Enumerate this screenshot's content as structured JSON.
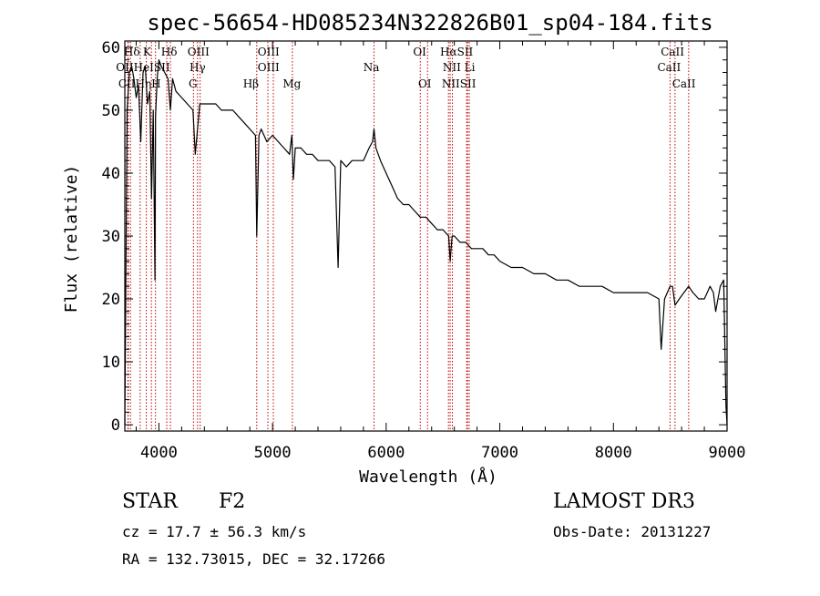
{
  "chart_data": {
    "type": "line",
    "title": "spec-56654-HD085234N322826B01_sp04-184.fits",
    "xlabel": "Wavelength (Å)",
    "ylabel": "Flux (relative)",
    "xlim": [
      3700,
      9000
    ],
    "ylim": [
      -1,
      61
    ],
    "xticks": [
      4000,
      5000,
      6000,
      7000,
      8000,
      9000
    ],
    "yticks": [
      0,
      10,
      20,
      30,
      40,
      50,
      60
    ],
    "xtick_labels": [
      "4000",
      "5000",
      "6000",
      "7000",
      "8000",
      "9000"
    ],
    "ytick_labels": [
      "0",
      "10",
      "20",
      "30",
      "40",
      "50",
      "60"
    ],
    "grid": false,
    "series": [
      {
        "name": "spectrum",
        "x": [
          3700,
          3720,
          3740,
          3760,
          3780,
          3800,
          3820,
          3840,
          3860,
          3880,
          3900,
          3920,
          3935,
          3950,
          3965,
          3970,
          3985,
          4000,
          4020,
          4050,
          4080,
          4101,
          4120,
          4150,
          4200,
          4250,
          4300,
          4320,
          4340,
          4360,
          4400,
          4450,
          4500,
          4550,
          4600,
          4650,
          4700,
          4750,
          4800,
          4850,
          4861,
          4880,
          4900,
          4950,
          5000,
          5050,
          5100,
          5150,
          5170,
          5183,
          5200,
          5250,
          5300,
          5350,
          5400,
          5450,
          5500,
          5550,
          5577,
          5600,
          5650,
          5700,
          5750,
          5800,
          5850,
          5880,
          5893,
          5910,
          5950,
          6000,
          6050,
          6100,
          6150,
          6200,
          6250,
          6300,
          6350,
          6400,
          6450,
          6500,
          6550,
          6563,
          6580,
          6600,
          6650,
          6700,
          6750,
          6800,
          6850,
          6900,
          6950,
          7000,
          7100,
          7200,
          7300,
          7400,
          7500,
          7600,
          7700,
          7800,
          7900,
          8000,
          8100,
          8200,
          8300,
          8400,
          8420,
          8450,
          8498,
          8520,
          8542,
          8580,
          8620,
          8662,
          8700,
          8750,
          8800,
          8850,
          8880,
          8900,
          8940,
          8970,
          8990,
          9000
        ],
        "y": [
          0,
          50,
          56,
          57,
          55,
          52,
          54,
          45,
          56,
          57,
          51,
          53,
          36,
          50,
          23,
          49,
          55,
          58,
          57,
          56,
          55,
          50,
          55,
          53,
          52,
          51,
          50,
          43,
          47,
          51,
          51,
          51,
          51,
          50,
          50,
          50,
          49,
          48,
          47,
          46,
          30,
          46,
          47,
          45,
          46,
          45,
          44,
          43,
          46,
          39,
          44,
          44,
          43,
          43,
          42,
          42,
          42,
          41,
          25,
          42,
          41,
          42,
          42,
          42,
          44,
          45,
          47,
          44,
          42,
          40,
          38,
          36,
          35,
          35,
          34,
          33,
          33,
          32,
          31,
          31,
          30,
          26,
          30,
          30,
          29,
          29,
          28,
          28,
          28,
          27,
          27,
          26,
          25,
          25,
          24,
          24,
          23,
          23,
          22,
          22,
          22,
          21,
          21,
          21,
          21,
          20,
          12,
          20,
          22,
          22,
          19,
          20,
          21,
          22,
          21,
          20,
          20,
          22,
          21,
          18,
          22,
          23,
          3,
          0
        ]
      }
    ],
    "lines": [
      {
        "label": "Hδ",
        "x": 3750
      },
      {
        "label": "K",
        "x": 3934
      },
      {
        "label": "Hδ",
        "x": 4101
      },
      {
        "label": "OII",
        "x": 3727
      },
      {
        "label": "HeI",
        "x": 3889
      },
      {
        "label": "SII",
        "x": 4069
      },
      {
        "label": "CII",
        "x": 3730
      },
      {
        "label": "Hη",
        "x": 3835
      },
      {
        "label": "H",
        "x": 3970
      },
      {
        "label": "OIII",
        "x": 4363
      },
      {
        "label": "Hγ",
        "x": 4340
      },
      {
        "label": "G",
        "x": 4304
      },
      {
        "label": "OIII",
        "x": 4959
      },
      {
        "label": "OIII",
        "x": 5007
      },
      {
        "label": "Hβ",
        "x": 4861
      },
      {
        "label": "Mg",
        "x": 5175
      },
      {
        "label": "Na",
        "x": 5893
      },
      {
        "label": "OI",
        "x": 6300
      },
      {
        "label": "OI",
        "x": 6364
      },
      {
        "label": "Hα",
        "x": 6563
      },
      {
        "label": "SII",
        "x": 6716
      },
      {
        "label": "NII",
        "x": 6548
      },
      {
        "label": "Li",
        "x": 6708
      },
      {
        "label": "NII",
        "x": 6583
      },
      {
        "label": "SII",
        "x": 6731
      },
      {
        "label": "CaII",
        "x": 8542
      },
      {
        "label": "CaII",
        "x": 8498
      },
      {
        "label": "CaII",
        "x": 8662
      }
    ],
    "lineLabels": [
      {
        "text": "Hδ",
        "x": 3762,
        "tier": 0
      },
      {
        "text": "K",
        "x": 3895,
        "tier": 0
      },
      {
        "text": "Hδ",
        "x": 4090,
        "tier": 0
      },
      {
        "text": "OIII",
        "x": 4348,
        "tier": 0
      },
      {
        "text": "OIII",
        "x": 4965,
        "tier": 0
      },
      {
        "text": "OI",
        "x": 6295,
        "tier": 0
      },
      {
        "text": "HαSII",
        "x": 6620,
        "tier": 0
      },
      {
        "text": "CaII",
        "x": 8520,
        "tier": 0
      },
      {
        "text": "OIIHeISII",
        "x": 3860,
        "tier": 1
      },
      {
        "text": "Hγ",
        "x": 4340,
        "tier": 1
      },
      {
        "text": "OIII",
        "x": 4965,
        "tier": 1
      },
      {
        "text": "Na",
        "x": 5870,
        "tier": 1
      },
      {
        "text": "NII Li",
        "x": 6640,
        "tier": 1
      },
      {
        "text": "CaII",
        "x": 8490,
        "tier": 1
      },
      {
        "text": "CIIHηH",
        "x": 3830,
        "tier": 2
      },
      {
        "text": "G",
        "x": 4300,
        "tier": 2
      },
      {
        "text": "Hβ",
        "x": 4810,
        "tier": 2
      },
      {
        "text": "Mg",
        "x": 5170,
        "tier": 2
      },
      {
        "text": "OI",
        "x": 6340,
        "tier": 2
      },
      {
        "text": "NIISII",
        "x": 6640,
        "tier": 2
      },
      {
        "text": "CaII",
        "x": 8620,
        "tier": 2
      }
    ]
  },
  "footer": {
    "object_type": "STAR",
    "subclass": "F2",
    "survey": "LAMOST DR3",
    "redshift": "cz = 17.7 ± 56.3 km/s",
    "obs_date": "Obs-Date: 20131227",
    "coords": "RA = 132.73015, DEC =  32.17266"
  },
  "colors": {
    "spectrum": "#000000",
    "line_markers": "#c00000",
    "axes": "#000000"
  }
}
